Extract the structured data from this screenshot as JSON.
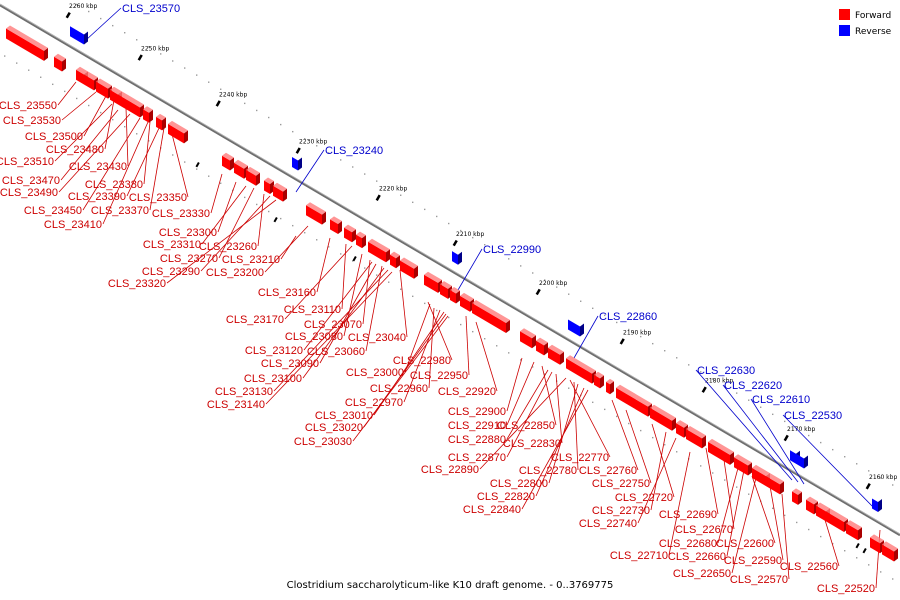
{
  "caption": "Clostridium saccharolyticum-like K10 draft genome. - 0..3769775",
  "legend": {
    "forward_label": "Forward",
    "reverse_label": "Reverse",
    "forward_color": "#ff0000",
    "reverse_color": "#0000ff",
    "forward_text_color": "#cc0000",
    "reverse_text_color": "#0000cc"
  },
  "kbp_ticks": [
    "2260 kbp",
    "2250 kbp",
    "2240 kbp",
    "2230 kbp",
    "2220 kbp",
    "2210 kbp",
    "2200 kbp",
    "2190 kbp",
    "2180 kbp",
    "2170 kbp",
    "2160 kbp"
  ],
  "reverse_genes": [
    "CLS_23570",
    "CLS_23240",
    "CLS_22990",
    "CLS_22860",
    "CLS_22630",
    "CLS_22620",
    "CLS_22610",
    "CLS_22530"
  ],
  "forward_genes": [
    "CLS_23550",
    "CLS_23530",
    "CLS_23500",
    "CLS_23480",
    "CLS_23510",
    "CLS_23430",
    "CLS_23470",
    "CLS_23380",
    "CLS_23490",
    "CLS_23390",
    "CLS_23350",
    "CLS_23450",
    "CLS_23370",
    "CLS_23330",
    "CLS_23410",
    "CLS_23300",
    "CLS_23310",
    "CLS_23260",
    "CLS_23270",
    "CLS_23210",
    "CLS_23290",
    "CLS_23200",
    "CLS_23320",
    "CLS_23160",
    "CLS_23110",
    "CLS_23170",
    "CLS_23070",
    "CLS_23080",
    "CLS_23040",
    "CLS_23120",
    "CLS_23060",
    "CLS_23090",
    "CLS_23100",
    "CLS_23130",
    "CLS_23140",
    "CLS_22980",
    "CLS_23000",
    "CLS_22950",
    "CLS_22960",
    "CLS_22920",
    "CLS_22970",
    "CLS_23010",
    "CLS_23020",
    "CLS_23030",
    "CLS_22900",
    "CLS_22910",
    "CLS_22850",
    "CLS_22880",
    "CLS_22830",
    "CLS_22870",
    "CLS_22770",
    "CLS_22890",
    "CLS_22780",
    "CLS_22760",
    "CLS_22800",
    "CLS_22750",
    "CLS_22820",
    "CLS_22720",
    "CLS_22840",
    "CLS_22730",
    "CLS_22740",
    "CLS_22690",
    "CLS_22670",
    "CLS_22680",
    "CLS_22600",
    "CLS_22710",
    "CLS_22660",
    "CLS_22590",
    "CLS_22650",
    "CLS_22570",
    "CLS_22560",
    "CLS_22520"
  ]
}
